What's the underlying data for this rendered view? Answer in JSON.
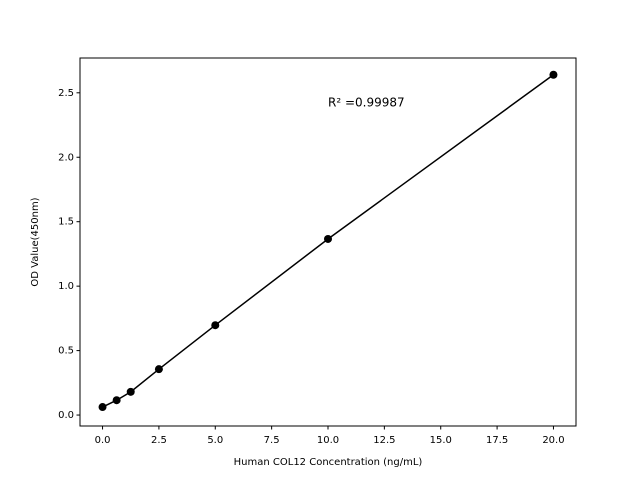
{
  "chart_data": {
    "type": "line",
    "xlabel": "Human COL12 Concentration (ng/mL)",
    "ylabel": "OD Value(450nm)",
    "annotation": "R² =0.99987",
    "x": [
      0,
      0.625,
      1.25,
      2.5,
      5,
      10,
      20
    ],
    "series": [
      {
        "color": "#000000",
        "values": [
          0.062,
          0.115,
          0.18,
          0.356,
          0.697,
          1.366,
          2.64
        ]
      }
    ],
    "xlim": [
      -1,
      21
    ],
    "ylim": [
      -0.085,
      2.77
    ],
    "xticks": [
      {
        "value": 0,
        "label": "0.0"
      },
      2.5,
      {
        "value": 5,
        "label": "5.0"
      },
      7.5,
      {
        "value": 10,
        "label": "10.0"
      },
      12.5,
      {
        "value": 15,
        "label": "15.0"
      },
      17.5,
      {
        "value": 20,
        "label": "20.0"
      }
    ],
    "yticks": [
      {
        "value": 0,
        "label": "0.0"
      },
      0.5,
      {
        "value": 1,
        "label": "1.0"
      },
      1.5,
      {
        "value": 2,
        "label": "2.0"
      },
      2.5
    ]
  }
}
